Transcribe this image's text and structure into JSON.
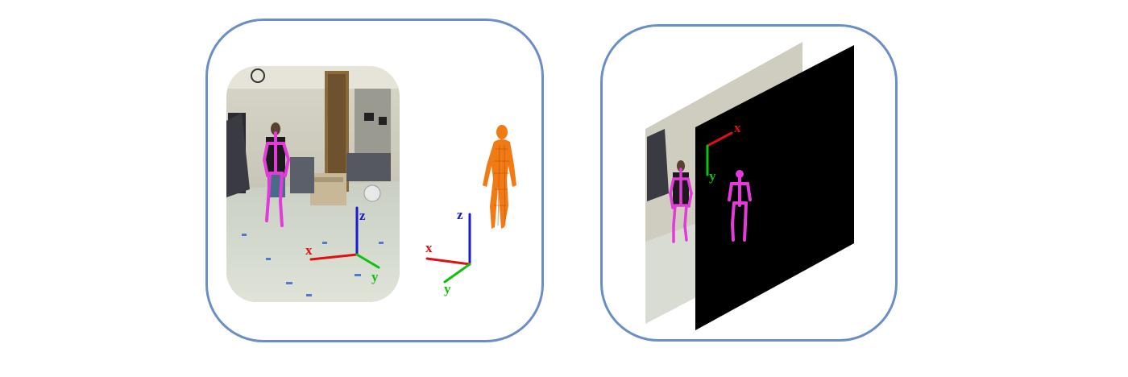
{
  "axis_labels": {
    "x": "x",
    "y": "y",
    "z": "z"
  },
  "colors": {
    "panel_border": "#6a8fc7",
    "skeleton": "#e23bd9",
    "mesh_body": "#f07a14",
    "axis_x": "#e01010",
    "axis_y": "#10c010",
    "axis_z": "#1a1ad0",
    "image_plane": "#000000"
  },
  "icons": [
    "camera-photo",
    "3d-human-mesh",
    "coordinate-axes",
    "image-projection-plane",
    "pose-skeleton"
  ]
}
